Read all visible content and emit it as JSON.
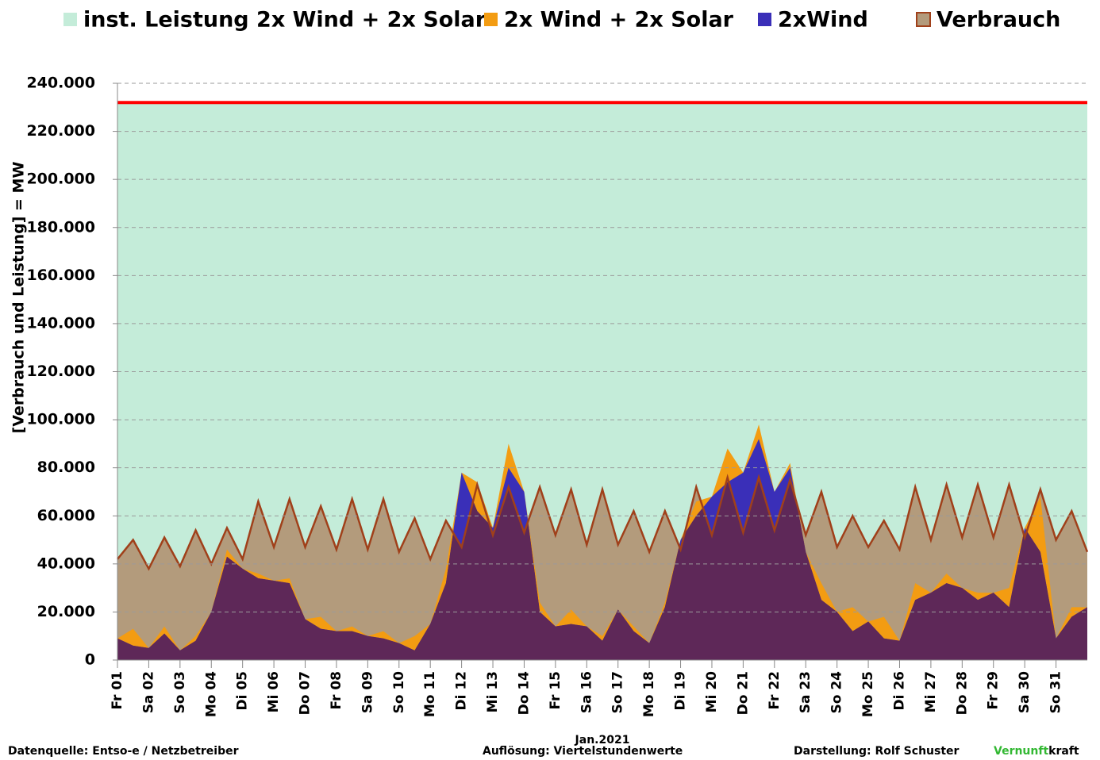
{
  "chart_data": {
    "type": "area",
    "ylabel": "[Verbrauch und Leistung] = MW",
    "xlabel": "Jan.2021",
    "x": [
      1,
      1.5,
      2,
      2.5,
      3,
      3.5,
      4,
      4.5,
      5,
      5.5,
      6,
      6.5,
      7,
      7.5,
      8,
      8.5,
      9,
      9.5,
      10,
      10.5,
      11,
      11.5,
      12,
      12.5,
      13,
      13.5,
      14,
      14.5,
      15,
      15.5,
      16,
      16.5,
      17,
      17.5,
      18,
      18.5,
      19,
      19.5,
      20,
      20.5,
      21,
      21.5,
      22,
      22.5,
      23,
      23.5,
      24,
      24.5,
      25,
      25.5,
      26,
      26.5,
      27,
      27.5,
      28,
      28.5,
      29,
      29.5,
      30,
      30.5,
      31,
      31.5,
      32
    ],
    "xlim": [
      1,
      32
    ],
    "xticks": [
      {
        "value": 1,
        "label": "Fr 01"
      },
      {
        "value": 2,
        "label": "Sa 02"
      },
      {
        "value": 3,
        "label": "So 03"
      },
      {
        "value": 4,
        "label": "Mo 04"
      },
      {
        "value": 5,
        "label": "Di 05"
      },
      {
        "value": 6,
        "label": "Mi 06"
      },
      {
        "value": 7,
        "label": "Do 07"
      },
      {
        "value": 8,
        "label": "Fr 08"
      },
      {
        "value": 9,
        "label": "Sa 09"
      },
      {
        "value": 10,
        "label": "So 10"
      },
      {
        "value": 11,
        "label": "Mo 11"
      },
      {
        "value": 12,
        "label": "Di 12"
      },
      {
        "value": 13,
        "label": "Mi 13"
      },
      {
        "value": 14,
        "label": "Do 14"
      },
      {
        "value": 15,
        "label": "Fr 15"
      },
      {
        "value": 16,
        "label": "Sa 16"
      },
      {
        "value": 17,
        "label": "So 17"
      },
      {
        "value": 18,
        "label": "Mo 18"
      },
      {
        "value": 19,
        "label": "Di 19"
      },
      {
        "value": 20,
        "label": "Mi 20"
      },
      {
        "value": 21,
        "label": "Do 21"
      },
      {
        "value": 22,
        "label": "Fr 22"
      },
      {
        "value": 23,
        "label": "Sa 23"
      },
      {
        "value": 24,
        "label": "So 24"
      },
      {
        "value": 25,
        "label": "Mo 25"
      },
      {
        "value": 26,
        "label": "Di 26"
      },
      {
        "value": 27,
        "label": "Mi 27"
      },
      {
        "value": 28,
        "label": "Do 28"
      },
      {
        "value": 29,
        "label": "Fr 29"
      },
      {
        "value": 30,
        "label": "Sa 30"
      },
      {
        "value": 31,
        "label": "So 31"
      }
    ],
    "ylim": [
      0,
      240000
    ],
    "yticks": [
      0,
      {
        "value": 20000,
        "label": "20.000"
      },
      {
        "value": 40000,
        "label": "40.000"
      },
      {
        "value": 60000,
        "label": "60.000"
      },
      {
        "value": 80000,
        "label": "80.000"
      },
      {
        "value": 100000,
        "label": "100.000"
      },
      {
        "value": 120000,
        "label": "120.000"
      },
      {
        "value": 140000,
        "label": "140.000"
      },
      {
        "value": 160000,
        "label": "160.000"
      },
      {
        "value": 180000,
        "label": "180.000"
      },
      {
        "value": 200000,
        "label": "200.000"
      },
      {
        "value": 220000,
        "label": "220.000"
      },
      {
        "value": 240000,
        "label": "240.000"
      }
    ],
    "grid": true,
    "overlap_color": "#5e2858",
    "series": [
      {
        "name": "inst. Leistung 2x Wind + 2x Solar",
        "color": "#c4ecd9",
        "line_color": "#ff0000",
        "values": [
          232000,
          232000,
          232000,
          232000,
          232000,
          232000,
          232000,
          232000,
          232000,
          232000,
          232000,
          232000,
          232000,
          232000,
          232000,
          232000,
          232000,
          232000,
          232000,
          232000,
          232000,
          232000,
          232000,
          232000,
          232000,
          232000,
          232000,
          232000,
          232000,
          232000,
          232000,
          232000,
          232000,
          232000,
          232000,
          232000,
          232000,
          232000,
          232000,
          232000,
          232000,
          232000,
          232000,
          232000,
          232000,
          232000,
          232000,
          232000,
          232000,
          232000,
          232000,
          232000,
          232000,
          232000,
          232000,
          232000,
          232000,
          232000,
          232000,
          232000,
          232000,
          232000,
          232000
        ]
      },
      {
        "name": "2x Wind + 2x Solar",
        "color": "#f39c12",
        "values": [
          9000,
          13000,
          5000,
          14000,
          4000,
          10000,
          20000,
          46000,
          38000,
          36000,
          33000,
          34000,
          17000,
          18000,
          12000,
          14000,
          10000,
          12000,
          7000,
          10000,
          15000,
          38000,
          78000,
          74000,
          55000,
          90000,
          70000,
          24000,
          14000,
          21000,
          14000,
          10000,
          21000,
          14000,
          7000,
          24000,
          50000,
          66000,
          68000,
          88000,
          78000,
          98000,
          70000,
          82000,
          45000,
          32000,
          20000,
          22000,
          16000,
          18000,
          8000,
          32000,
          28000,
          36000,
          30000,
          28000,
          28000,
          30000,
          55000,
          68000,
          9000,
          22000,
          22000
        ]
      },
      {
        "name": "2xWind",
        "color": "#3a2fb8",
        "values": [
          9000,
          6000,
          5000,
          11000,
          4000,
          8000,
          20000,
          43000,
          38000,
          34000,
          33000,
          32000,
          17000,
          13000,
          12000,
          12000,
          10000,
          9000,
          7000,
          4000,
          15000,
          32000,
          78000,
          62000,
          55000,
          80000,
          70000,
          20000,
          14000,
          15000,
          14000,
          8000,
          21000,
          12000,
          7000,
          22000,
          50000,
          60000,
          68000,
          74000,
          78000,
          92000,
          70000,
          80000,
          45000,
          25000,
          20000,
          12000,
          16000,
          9000,
          8000,
          25000,
          28000,
          32000,
          30000,
          25000,
          28000,
          22000,
          55000,
          45000,
          9000,
          18000,
          22000
        ]
      },
      {
        "name": "Verbrauch",
        "color": "#b39b7c",
        "line_color": "#a0401a",
        "values": [
          42000,
          50000,
          38000,
          51000,
          39000,
          54000,
          40000,
          55000,
          42000,
          66000,
          47000,
          67000,
          47000,
          64000,
          46000,
          67000,
          46000,
          67000,
          45000,
          59000,
          42000,
          58000,
          47000,
          73000,
          52000,
          72000,
          53000,
          72000,
          52000,
          71000,
          48000,
          71000,
          48000,
          62000,
          45000,
          62000,
          46000,
          72000,
          52000,
          76000,
          53000,
          76000,
          54000,
          75000,
          52000,
          70000,
          47000,
          60000,
          47000,
          58000,
          46000,
          72000,
          50000,
          73000,
          51000,
          73000,
          51000,
          73000,
          51000,
          71000,
          50000,
          62000,
          45000
        ]
      }
    ]
  },
  "footer": {
    "source": "Datenquelle: Entso-e  / Netzbetreiber",
    "resolution": "Auflösung: Viertelstundenwerte",
    "author": "Darstellung:  Rolf Schuster",
    "brand_green": "Vernunft",
    "brand_black": "kraft"
  }
}
